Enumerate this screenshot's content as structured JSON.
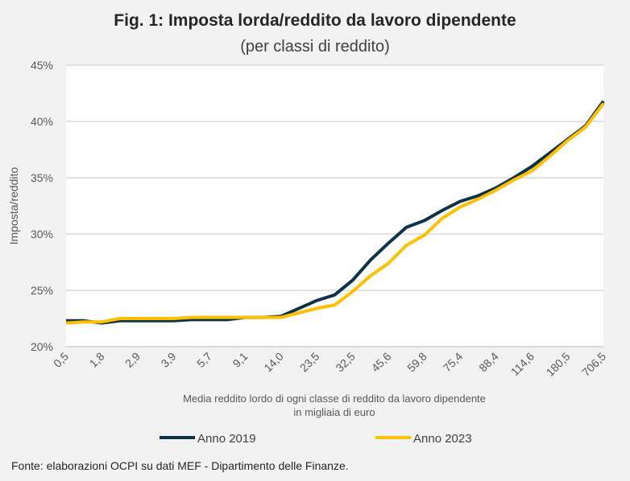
{
  "chart_data": {
    "type": "line",
    "title": "Fig. 1: Imposta lorda/reddito da lavoro dipendente",
    "subtitle": "(per classi di reddito)",
    "ylabel": "Imposta/reddito",
    "xlabel_line1": "Media reddito lordo di ogni classe di reddito da lavoro dipendente",
    "xlabel_line2": "in migliaia di euro",
    "ylim": [
      20,
      45
    ],
    "yticks": [
      20,
      25,
      30,
      35,
      40,
      45
    ],
    "ytick_labels": [
      "20%",
      "25%",
      "30%",
      "35%",
      "40%",
      "45%"
    ],
    "x_tick_labels": [
      "0,5",
      "1,8",
      "2,9",
      "3,9",
      "5,7",
      "9,1",
      "14,0",
      "23,5",
      "32,5",
      "45,6",
      "59,8",
      "75,4",
      "88,4",
      "114,6",
      "180,5",
      "706,5"
    ],
    "n_points": 31,
    "grid": true,
    "legend_position": "bottom",
    "series": [
      {
        "name": "Anno 2019",
        "color": "#0d3349",
        "values": [
          22.3,
          22.3,
          22.1,
          22.3,
          22.3,
          22.3,
          22.3,
          22.4,
          22.4,
          22.4,
          22.6,
          22.6,
          22.7,
          23.4,
          24.1,
          24.6,
          25.9,
          27.7,
          29.2,
          30.6,
          31.2,
          32.1,
          32.9,
          33.4,
          34.1,
          35.0,
          36.0,
          37.2,
          38.4,
          39.6,
          41.8
        ]
      },
      {
        "name": "Anno 2023",
        "color": "#ffc000",
        "values": [
          22.1,
          22.2,
          22.2,
          22.5,
          22.5,
          22.5,
          22.5,
          22.6,
          22.6,
          22.6,
          22.6,
          22.6,
          22.6,
          23.0,
          23.4,
          23.7,
          24.9,
          26.3,
          27.4,
          29.0,
          29.9,
          31.4,
          32.4,
          33.1,
          33.9,
          34.8,
          35.6,
          36.9,
          38.3,
          39.5,
          41.6
        ]
      }
    ],
    "source": "Fonte: elaborazioni OCPI su dati MEF - Dipartimento delle Finanze."
  }
}
